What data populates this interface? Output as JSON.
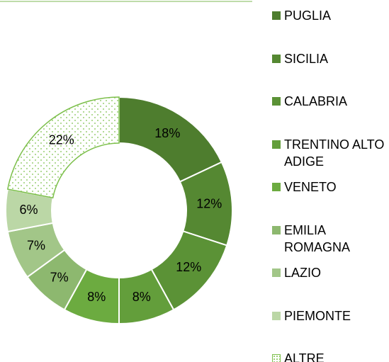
{
  "chart_data": {
    "type": "donut",
    "categories": [
      "PUGLIA",
      "SICILIA",
      "CALABRIA",
      "TRENTINO ALTO ADIGE",
      "VENETO",
      "EMILIA ROMAGNA",
      "LAZIO",
      "PIEMONTE",
      "ALTRE"
    ],
    "values": [
      18,
      12,
      12,
      8,
      8,
      7,
      7,
      6,
      22
    ],
    "value_labels": [
      "18%",
      "12%",
      "12%",
      "8%",
      "8%",
      "7%",
      "7%",
      "6%",
      "22%"
    ],
    "colors": [
      "#4e7d2e",
      "#558832",
      "#5b9236",
      "#639e3b",
      "#6cab40",
      "#8db86f",
      "#a2c688",
      "#bbd7a6",
      "pattern"
    ]
  }
}
